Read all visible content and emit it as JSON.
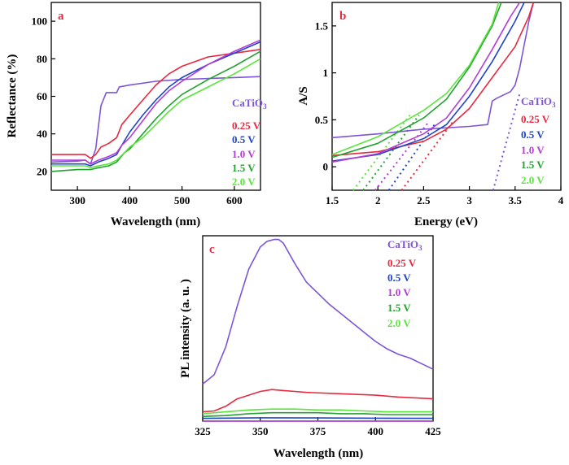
{
  "chart_data": [
    {
      "panel": "a",
      "type": "line",
      "xlabel": "Wavelength (nm)",
      "ylabel": "Reflectance (%)",
      "xlim": [
        250,
        650
      ],
      "ylim": [
        10,
        110
      ],
      "xticks": [
        300,
        400,
        500,
        600
      ],
      "yticks": [
        20,
        40,
        60,
        80,
        100
      ],
      "legend": [
        "CaTiO3",
        "0.25 V",
        "0.5 V",
        "1.0 V",
        "1.5 V",
        "2.0 V"
      ],
      "series": [
        {
          "name": "CaTiO3",
          "color": "#7d55d6",
          "x": [
            250,
            300,
            315,
            325,
            335,
            345,
            355,
            365,
            375,
            380,
            400,
            450,
            500,
            550,
            600,
            650
          ],
          "y": [
            25,
            25.5,
            26,
            24,
            32,
            55,
            62,
            62,
            62,
            65,
            66,
            68,
            69,
            69.5,
            70,
            70.5
          ]
        },
        {
          "name": "0.25 V",
          "color": "#e8293f",
          "x": [
            250,
            300,
            315,
            325,
            335,
            345,
            360,
            375,
            385,
            400,
            425,
            450,
            475,
            500,
            550,
            600,
            650
          ],
          "y": [
            29,
            29,
            29,
            27,
            29,
            33,
            35,
            38,
            45,
            50,
            58,
            66,
            72,
            76,
            81,
            83,
            85
          ]
        },
        {
          "name": "0.5 V",
          "color": "#1f45c6",
          "x": [
            250,
            300,
            315,
            325,
            340,
            360,
            375,
            385,
            400,
            425,
            450,
            475,
            500,
            550,
            600,
            650
          ],
          "y": [
            24,
            24,
            24,
            23,
            25,
            27,
            29,
            34,
            41,
            50,
            58,
            65,
            70,
            77,
            83,
            89
          ]
        },
        {
          "name": "1.0 V",
          "color": "#b43cd6",
          "x": [
            250,
            300,
            315,
            325,
            340,
            360,
            375,
            385,
            400,
            425,
            450,
            475,
            500,
            550,
            600,
            650
          ],
          "y": [
            26,
            26,
            26,
            24,
            26,
            28,
            30,
            34,
            38,
            47,
            56,
            63,
            68,
            77,
            84,
            90
          ]
        },
        {
          "name": "1.5 V",
          "color": "#22a32f",
          "x": [
            250,
            300,
            315,
            325,
            340,
            360,
            375,
            390,
            400,
            425,
            450,
            475,
            500,
            550,
            600,
            650
          ],
          "y": [
            20,
            21,
            21,
            21,
            22,
            23,
            25,
            30,
            32,
            40,
            48,
            55,
            61,
            69,
            76,
            84
          ]
        },
        {
          "name": "2.0 V",
          "color": "#58e63a",
          "x": [
            250,
            300,
            315,
            325,
            340,
            360,
            375,
            390,
            400,
            425,
            450,
            475,
            500,
            550,
            600,
            650
          ],
          "y": [
            23,
            23,
            23,
            22,
            23,
            24,
            26,
            30,
            33,
            38,
            45,
            52,
            58,
            65,
            72,
            80
          ]
        }
      ]
    },
    {
      "panel": "b",
      "type": "line",
      "xlabel": "Energy (eV)",
      "ylabel": "A/S",
      "xlim": [
        1.5,
        4.0
      ],
      "ylim": [
        -0.25,
        1.75
      ],
      "xticks": [
        1.5,
        2,
        2.5,
        3,
        3.5,
        4
      ],
      "xtick_labels": [
        "1.5",
        "2",
        "2.5",
        "3",
        "3.5",
        "4"
      ],
      "yticks": [
        0,
        0.5,
        1,
        1.5
      ],
      "ytick_labels": [
        "0",
        "0.5",
        "1",
        "1.5"
      ],
      "legend": [
        "CaTiO3",
        "0.25 V",
        "0.5 V",
        "1.0 V",
        "1.5 V",
        "2.0 V"
      ],
      "series": [
        {
          "name": "CaTiO3",
          "color": "#7d55d6",
          "x": [
            1.5,
            2.0,
            2.5,
            3.0,
            3.2,
            3.25,
            3.3,
            3.45,
            3.5,
            3.55,
            3.6,
            3.65,
            3.7
          ],
          "y": [
            0.31,
            0.35,
            0.4,
            0.43,
            0.45,
            0.7,
            0.73,
            0.8,
            0.87,
            1.05,
            1.3,
            1.55,
            1.75
          ],
          "fit": {
            "x": [
              3.26,
              3.55
            ],
            "y": [
              -0.25,
              0.78
            ]
          }
        },
        {
          "name": "0.25 V",
          "color": "#e8293f",
          "x": [
            1.5,
            2.0,
            2.5,
            2.75,
            3.0,
            3.25,
            3.5,
            3.65,
            3.7
          ],
          "y": [
            0.12,
            0.16,
            0.27,
            0.4,
            0.62,
            0.95,
            1.28,
            1.6,
            1.75
          ],
          "fit": {
            "x": [
              2.26,
              2.82
            ],
            "y": [
              -0.25,
              0.48
            ]
          }
        },
        {
          "name": "0.5 V",
          "color": "#1f45c6",
          "x": [
            1.5,
            2.0,
            2.5,
            2.75,
            3.0,
            3.25,
            3.5,
            3.6
          ],
          "y": [
            0.06,
            0.13,
            0.3,
            0.45,
            0.75,
            1.12,
            1.55,
            1.75
          ],
          "fit": {
            "x": [
              2.12,
              2.62
            ],
            "y": [
              -0.25,
              0.45
            ]
          }
        },
        {
          "name": "1.0 V",
          "color": "#b43cd6",
          "x": [
            1.5,
            2.0,
            2.5,
            2.75,
            3.0,
            3.25,
            3.45,
            3.55
          ],
          "y": [
            0.05,
            0.14,
            0.35,
            0.52,
            0.84,
            1.25,
            1.6,
            1.75
          ],
          "fit": {
            "x": [
              1.97,
              2.55
            ],
            "y": [
              -0.25,
              0.47
            ]
          }
        },
        {
          "name": "1.5 V",
          "color": "#22a32f",
          "x": [
            1.5,
            2.0,
            2.5,
            2.75,
            3.0,
            3.25,
            3.35
          ],
          "y": [
            0.1,
            0.25,
            0.52,
            0.72,
            1.06,
            1.5,
            1.75
          ],
          "fit": {
            "x": [
              1.84,
              2.45
            ],
            "y": [
              -0.25,
              0.55
            ]
          }
        },
        {
          "name": "2.0 V",
          "color": "#58e63a",
          "x": [
            1.5,
            2.0,
            2.5,
            2.75,
            3.0,
            3.25,
            3.32
          ],
          "y": [
            0.13,
            0.32,
            0.6,
            0.78,
            1.08,
            1.52,
            1.75
          ],
          "fit": {
            "x": [
              1.73,
              2.35
            ],
            "y": [
              -0.25,
              0.55
            ]
          }
        }
      ]
    },
    {
      "panel": "c",
      "type": "line",
      "xlabel": "Wavelength (nm)",
      "ylabel": "PL intensity (a. u. )",
      "xlim": [
        325,
        425
      ],
      "ylim": [
        0,
        1
      ],
      "xticks": [
        325,
        350,
        375,
        400,
        425
      ],
      "yticks": [],
      "legend": [
        "CaTiO3",
        "0.25 V",
        "0.5 V",
        "1.0 V",
        "1.5 V",
        "2.0 V"
      ],
      "series": [
        {
          "name": "CaTiO3",
          "color": "#7d55d6",
          "x": [
            325,
            330,
            335,
            340,
            345,
            350,
            353,
            356,
            358,
            360,
            365,
            370,
            375,
            380,
            385,
            390,
            395,
            400,
            405,
            410,
            415,
            420,
            425
          ],
          "y": [
            0.2,
            0.25,
            0.4,
            0.62,
            0.82,
            0.94,
            0.97,
            0.98,
            0.98,
            0.96,
            0.85,
            0.75,
            0.69,
            0.63,
            0.58,
            0.53,
            0.48,
            0.43,
            0.39,
            0.36,
            0.34,
            0.31,
            0.28
          ]
        },
        {
          "name": "0.25 V",
          "color": "#e8293f",
          "x": [
            325,
            330,
            335,
            340,
            345,
            350,
            355,
            360,
            365,
            370,
            380,
            390,
            400,
            410,
            425
          ],
          "y": [
            0.05,
            0.055,
            0.08,
            0.12,
            0.14,
            0.16,
            0.17,
            0.165,
            0.16,
            0.155,
            0.15,
            0.145,
            0.14,
            0.13,
            0.12
          ]
        },
        {
          "name": "0.5 V",
          "color": "#1f45c6",
          "x": [
            325,
            350,
            375,
            400,
            425
          ],
          "y": [
            0.015,
            0.018,
            0.017,
            0.016,
            0.015
          ]
        },
        {
          "name": "1.0 V",
          "color": "#b43cd6",
          "x": [
            325,
            350,
            375,
            400,
            425
          ],
          "y": [
            -0.065,
            -0.064,
            -0.064,
            -0.063,
            -0.062
          ]
        },
        {
          "name": "1.5 V",
          "color": "#22a32f",
          "x": [
            325,
            335,
            345,
            355,
            365,
            375,
            385,
            395,
            405,
            415,
            425
          ],
          "y": [
            0.025,
            0.03,
            0.04,
            0.045,
            0.045,
            0.045,
            0.04,
            0.04,
            0.035,
            0.035,
            0.035
          ]
        },
        {
          "name": "2.0 V",
          "color": "#58e63a",
          "x": [
            325,
            335,
            345,
            355,
            365,
            375,
            385,
            395,
            405,
            415,
            425
          ],
          "y": [
            0.04,
            0.05,
            0.06,
            0.065,
            0.065,
            0.06,
            0.06,
            0.055,
            0.05,
            0.05,
            0.05
          ]
        }
      ]
    }
  ]
}
